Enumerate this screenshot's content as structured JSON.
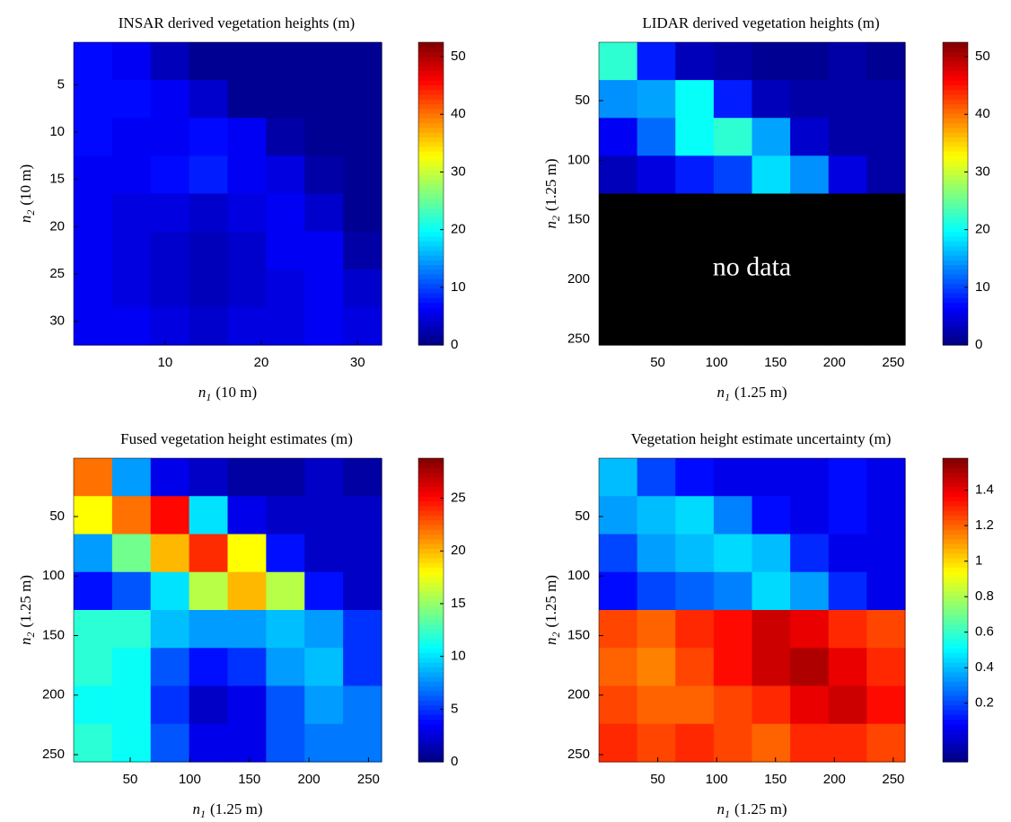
{
  "chart_data": [
    {
      "type": "heatmap",
      "title": "INSAR derived vegetation heights (m)",
      "xlabel": [
        "n",
        "1",
        "(10 m)"
      ],
      "ylabel": [
        "n",
        "2",
        "(10 m)"
      ],
      "xlim": [
        0.5,
        32.5
      ],
      "xticks": [
        10,
        20,
        30
      ],
      "ylim": [
        0.5,
        32.5
      ],
      "yticks": [
        5,
        10,
        15,
        20,
        25,
        30
      ],
      "y_reversed": true,
      "colormap": "jet",
      "clim": [
        0,
        52.5
      ],
      "cticks": [
        0,
        10,
        20,
        30,
        40,
        50
      ],
      "z": [
        [
          7,
          6,
          3,
          1,
          1,
          1,
          1,
          1
        ],
        [
          7,
          7,
          6,
          4,
          1,
          1,
          1,
          1
        ],
        [
          7,
          6,
          6,
          7,
          6,
          2,
          1,
          1
        ],
        [
          6,
          6,
          7,
          8,
          6,
          5,
          2,
          1
        ],
        [
          6,
          5,
          5,
          4,
          5,
          6,
          4,
          1
        ],
        [
          6,
          5,
          4,
          3,
          4,
          6,
          6,
          2
        ],
        [
          6,
          5,
          4,
          3,
          4,
          5,
          6,
          4
        ],
        [
          6,
          6,
          5,
          4,
          5,
          5,
          6,
          5
        ]
      ]
    },
    {
      "type": "heatmap",
      "title": "LIDAR derived vegetation heights (m)",
      "xlabel": [
        "n",
        "1",
        "(1.25 m)"
      ],
      "ylabel": [
        "n",
        "2",
        "(1.25 m)"
      ],
      "xlim": [
        0,
        260
      ],
      "xticks": [
        50,
        100,
        150,
        200,
        250
      ],
      "ylim": [
        1,
        255
      ],
      "yticks": [
        50,
        100,
        150,
        200,
        250
      ],
      "y_reversed": true,
      "colormap": "jet",
      "clim": [
        0,
        52.5
      ],
      "cticks": [
        0,
        10,
        20,
        30,
        40,
        50
      ],
      "nodata_color": "#000000",
      "annotation": "no data",
      "z": [
        [
          22,
          8,
          3,
          2,
          1,
          1,
          2,
          1
        ],
        [
          14,
          15,
          20,
          8,
          3,
          2,
          2,
          2
        ],
        [
          6,
          12,
          20,
          22,
          15,
          4,
          2,
          2
        ],
        [
          3,
          5,
          8,
          10,
          18,
          14,
          5,
          2
        ],
        [
          null,
          null,
          null,
          null,
          null,
          null,
          null,
          null
        ],
        [
          null,
          null,
          null,
          null,
          null,
          null,
          null,
          null
        ],
        [
          null,
          null,
          null,
          null,
          null,
          null,
          null,
          null
        ],
        [
          null,
          null,
          null,
          null,
          null,
          null,
          null,
          null
        ]
      ]
    },
    {
      "type": "heatmap",
      "title": "Fused vegetation height estimates (m)",
      "xlabel": [
        "n",
        "1",
        "(1.25 m)"
      ],
      "ylabel": [
        "n",
        "2",
        "(1.25 m)"
      ],
      "xlim": [
        2.5,
        261
      ],
      "xticks": [
        50,
        100,
        150,
        200,
        250
      ],
      "ylim": [
        1,
        256
      ],
      "yticks": [
        50,
        100,
        150,
        200,
        250
      ],
      "y_reversed": true,
      "colormap": "jet",
      "clim": [
        0,
        28.8
      ],
      "cticks": [
        0,
        5,
        10,
        15,
        20,
        25
      ],
      "z": [
        [
          22,
          8,
          3,
          2,
          1,
          1,
          2,
          1
        ],
        [
          18,
          22,
          25,
          10,
          3,
          2,
          2,
          2
        ],
        [
          8,
          14,
          20,
          24,
          18,
          4,
          2,
          2
        ],
        [
          4,
          6,
          10,
          16,
          20,
          16,
          4,
          2
        ],
        [
          12,
          12,
          9,
          8,
          8,
          9,
          8,
          5
        ],
        [
          12,
          11,
          6,
          4,
          5,
          8,
          9,
          5
        ],
        [
          11,
          11,
          5,
          2,
          3,
          6,
          8,
          7
        ],
        [
          12,
          11,
          6,
          3,
          3,
          6,
          7,
          7
        ]
      ]
    },
    {
      "type": "heatmap",
      "title": "Vegetation height estimate uncertainty (m)",
      "xlabel": [
        "n",
        "1",
        "(1.25 m)"
      ],
      "ylabel": [
        "n",
        "2",
        "(1.25 m)"
      ],
      "xlim": [
        0,
        260
      ],
      "xticks": [
        50,
        100,
        150,
        200,
        250
      ],
      "ylim": [
        1,
        256
      ],
      "yticks": [
        50,
        100,
        150,
        200,
        250
      ],
      "y_reversed": true,
      "colormap": "jet",
      "clim": [
        -0.13,
        1.58
      ],
      "cticks": [
        0.2,
        0.4,
        0.6,
        0.8,
        1,
        1.2,
        1.4
      ],
      "z": [
        [
          0.4,
          0.2,
          0.1,
          0.05,
          0.05,
          0.05,
          0.1,
          0.05
        ],
        [
          0.35,
          0.4,
          0.45,
          0.3,
          0.1,
          0.05,
          0.1,
          0.05
        ],
        [
          0.2,
          0.35,
          0.4,
          0.45,
          0.4,
          0.15,
          0.05,
          0.05
        ],
        [
          0.1,
          0.2,
          0.25,
          0.3,
          0.45,
          0.35,
          0.15,
          0.05
        ],
        [
          1.25,
          1.2,
          1.3,
          1.35,
          1.45,
          1.4,
          1.3,
          1.25
        ],
        [
          1.2,
          1.15,
          1.25,
          1.35,
          1.45,
          1.5,
          1.4,
          1.3
        ],
        [
          1.25,
          1.2,
          1.2,
          1.25,
          1.3,
          1.4,
          1.45,
          1.35
        ],
        [
          1.3,
          1.25,
          1.3,
          1.25,
          1.2,
          1.3,
          1.3,
          1.25
        ]
      ]
    }
  ]
}
